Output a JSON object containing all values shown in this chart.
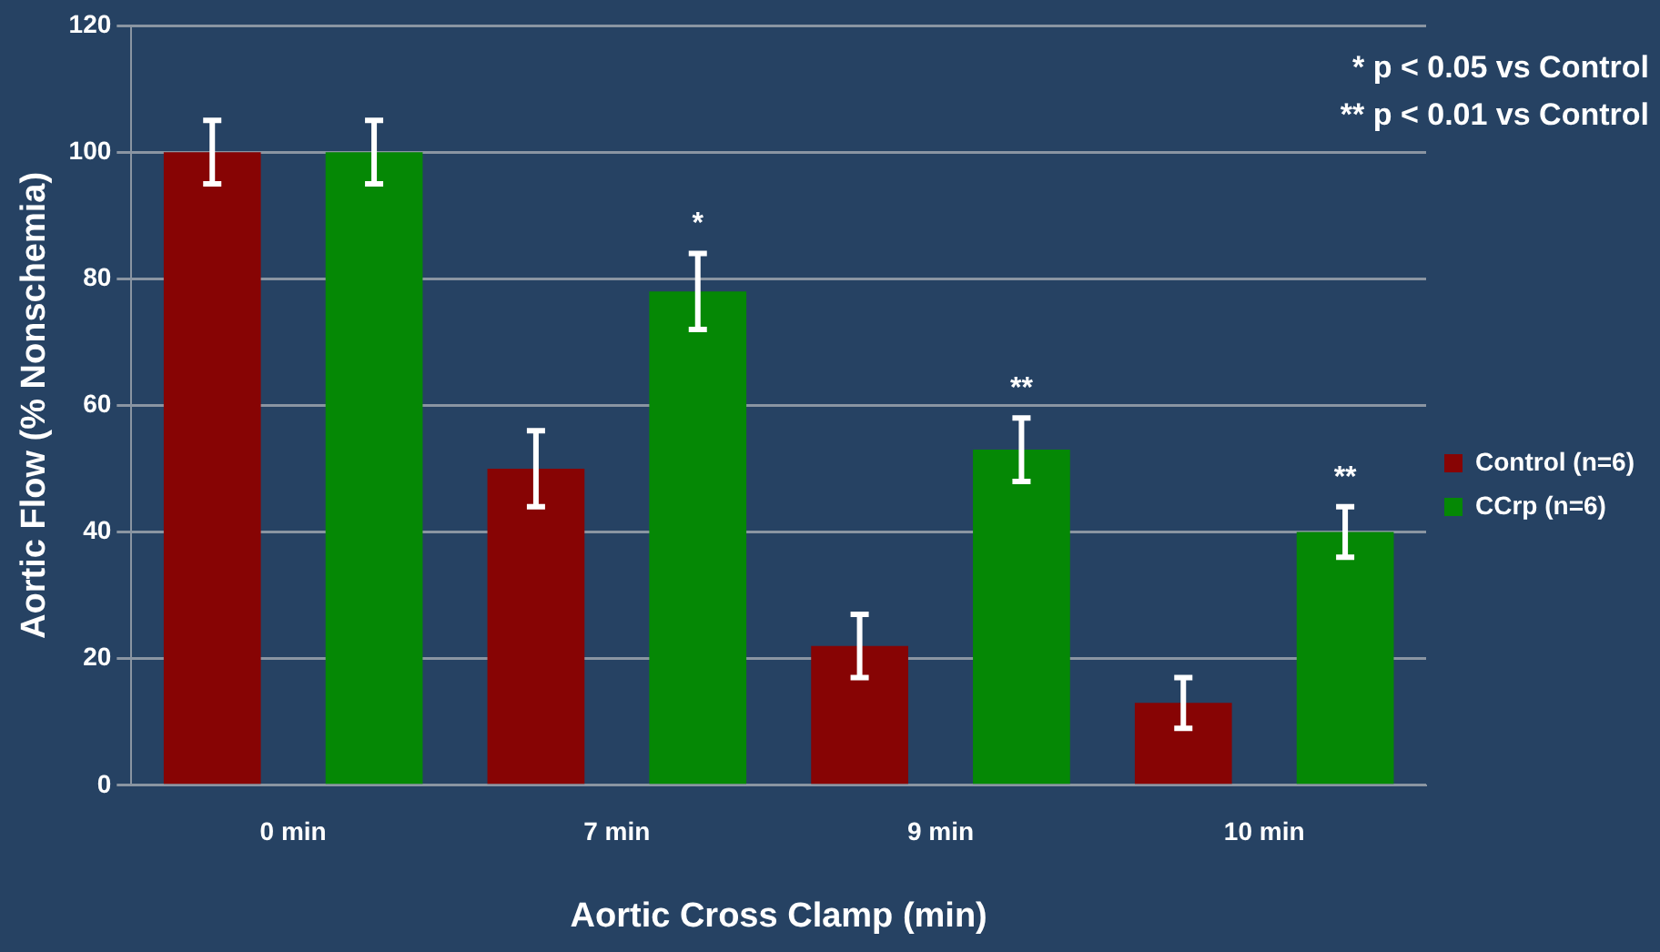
{
  "chart_data": {
    "type": "bar",
    "xlabel": "Aortic Cross Clamp (min)",
    "ylabel": "Aortic Flow (% Nonschemia)",
    "categories": [
      "0 min",
      "7 min",
      "9 min",
      "10 min"
    ],
    "series": [
      {
        "name": "Control (n=6)",
        "color": "#870404",
        "values": [
          100,
          50,
          22,
          13
        ],
        "errors": [
          5,
          6,
          5,
          4
        ]
      },
      {
        "name": "CCrp (n=6)",
        "color": "#058805",
        "values": [
          100,
          78,
          53,
          40
        ],
        "errors": [
          5,
          6,
          5,
          4
        ],
        "value_labels": [
          null,
          "*",
          "**",
          "**"
        ]
      }
    ],
    "ylim": [
      0,
      120
    ],
    "yticks": [
      0,
      20,
      40,
      60,
      80,
      100,
      120
    ],
    "grid": "y",
    "legend": "right",
    "annotations": [
      "* p < 0.05 vs Control",
      "** p < 0.01 vs Control"
    ]
  }
}
